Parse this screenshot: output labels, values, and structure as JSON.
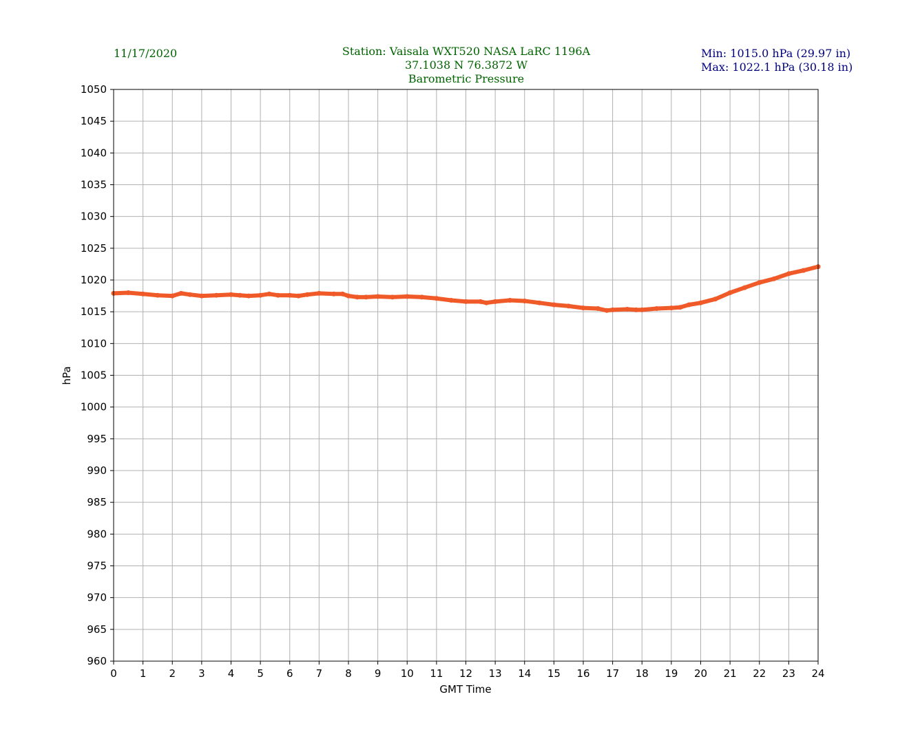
{
  "header": {
    "date": "11/17/2020",
    "station_line": "Station:  Vaisala WXT520  NASA LaRC 1196A",
    "coords_line": "37.1038 N 76.3872 W",
    "title_line": "Barometric Pressure",
    "min_text": "Min: 1015.0 hPa (29.97 in)",
    "max_text": "Max: 1022.1 hPa (30.18 in)"
  },
  "colors": {
    "header_green": "#006400",
    "minmax_navy": "#000080",
    "series": "#f05a28",
    "grid": "#b0b0b0"
  },
  "chart_data": {
    "type": "line",
    "xlabel": "GMT Time",
    "ylabel": "hPa",
    "xlim": [
      0,
      24
    ],
    "ylim": [
      960,
      1050
    ],
    "x_ticks": [
      0,
      1,
      2,
      3,
      4,
      5,
      6,
      7,
      8,
      9,
      10,
      11,
      12,
      13,
      14,
      15,
      16,
      17,
      18,
      19,
      20,
      21,
      22,
      23,
      24
    ],
    "y_ticks": [
      960,
      965,
      970,
      975,
      980,
      985,
      990,
      995,
      1000,
      1005,
      1010,
      1015,
      1020,
      1025,
      1030,
      1035,
      1040,
      1045,
      1050
    ],
    "grid": true,
    "series": [
      {
        "x": [
          0,
          0.5,
          1,
          1.5,
          2,
          2.3,
          2.6,
          3,
          3.5,
          4,
          4.3,
          4.6,
          5,
          5.3,
          5.6,
          6,
          6.3,
          6.6,
          7,
          7.5,
          7.8,
          8,
          8.3,
          8.6,
          9,
          9.5,
          10,
          10.5,
          11,
          11.5,
          12,
          12.5,
          12.7,
          13,
          13.5,
          14,
          14.5,
          15,
          15.5,
          16,
          16.5,
          16.8,
          17,
          17.5,
          17.8,
          18,
          18.5,
          19,
          19.3,
          19.6,
          20,
          20.5,
          21,
          21.5,
          22,
          22.5,
          23,
          23.5,
          24
        ],
        "y": [
          1017.9,
          1018.0,
          1017.8,
          1017.6,
          1017.5,
          1017.9,
          1017.7,
          1017.5,
          1017.6,
          1017.7,
          1017.6,
          1017.5,
          1017.6,
          1017.8,
          1017.6,
          1017.6,
          1017.5,
          1017.7,
          1017.9,
          1017.8,
          1017.8,
          1017.5,
          1017.3,
          1017.3,
          1017.4,
          1017.3,
          1017.4,
          1017.3,
          1017.1,
          1016.8,
          1016.6,
          1016.6,
          1016.4,
          1016.6,
          1016.8,
          1016.7,
          1016.4,
          1016.1,
          1015.9,
          1015.6,
          1015.5,
          1015.2,
          1015.3,
          1015.4,
          1015.3,
          1015.3,
          1015.5,
          1015.6,
          1015.7,
          1016.1,
          1016.4,
          1017.0,
          1018.0,
          1018.8,
          1019.6,
          1020.2,
          1021.0,
          1021.5,
          1022.1
        ]
      }
    ]
  }
}
